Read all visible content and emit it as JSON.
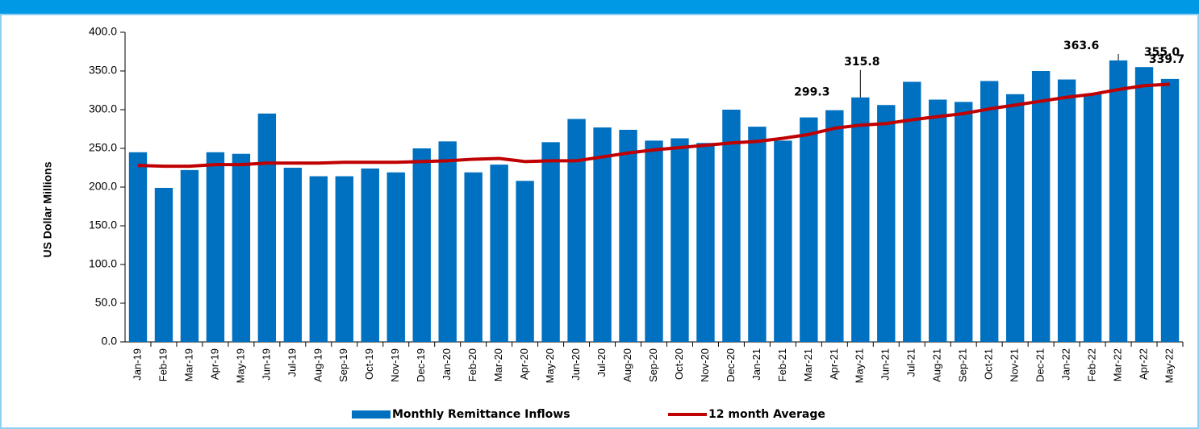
{
  "chart_data": {
    "type": "bar",
    "y_label": "US Dollar Millions",
    "categories": [
      "Jan-19",
      "Feb-19",
      "Mar-19",
      "Apr-19",
      "May-19",
      "Jun-19",
      "Jul-19",
      "Aug-19",
      "Sep-19",
      "Oct-19",
      "Nov-19",
      "Dec-19",
      "Jan-20",
      "Feb-20",
      "Mar-20",
      "Apr-20",
      "May-20",
      "Jun-20",
      "Jul-20",
      "Aug-20",
      "Sep-20",
      "Oct-20",
      "Nov-20",
      "Dec-20",
      "Jan-21",
      "Feb-21",
      "Mar-21",
      "Apr-21",
      "May-21",
      "Jun-21",
      "Jul-21",
      "Aug-21",
      "Sep-21",
      "Oct-21",
      "Nov-21",
      "Dec-21",
      "Jan-22",
      "Feb-22",
      "Mar-22",
      "Apr-22",
      "May-22"
    ],
    "series": [
      {
        "name": "Monthly Remittance Inflows",
        "type": "bar",
        "color": "#0070c0",
        "values": [
          245,
          199,
          222,
          245,
          243,
          295,
          225,
          214,
          214,
          224,
          219,
          250,
          259,
          219,
          229,
          208,
          258,
          288,
          277,
          274,
          260,
          263,
          257,
          300,
          278,
          260,
          290,
          299.3,
          315.8,
          306,
          336,
          313,
          310,
          337,
          320,
          350,
          339,
          320,
          363.6,
          355.0,
          339.7
        ],
        "value_labels": [
          null,
          null,
          null,
          null,
          null,
          null,
          null,
          null,
          null,
          null,
          null,
          null,
          null,
          null,
          null,
          null,
          null,
          null,
          null,
          null,
          null,
          null,
          null,
          null,
          null,
          null,
          null,
          "299.3",
          "315.8",
          null,
          null,
          null,
          null,
          null,
          null,
          null,
          null,
          null,
          "363.6",
          "355.0",
          "339.7"
        ]
      },
      {
        "name": "12 month Average",
        "type": "line",
        "color": "#c00000",
        "values": [
          228,
          227,
          227,
          229,
          229,
          231,
          231,
          231,
          232,
          232,
          232,
          233,
          234,
          236,
          237,
          233,
          234,
          234,
          239,
          244,
          248,
          251,
          254,
          257,
          259,
          263,
          268,
          276,
          280,
          282,
          287,
          291,
          295,
          301,
          306,
          311,
          316,
          320,
          326,
          331,
          333
        ]
      }
    ],
    "ylim": [
      0,
      400
    ],
    "yticks": [
      {
        "value": 0,
        "label": "0.0"
      },
      {
        "value": 50,
        "label": "50.0"
      },
      {
        "value": 100,
        "label": "100.0"
      },
      {
        "value": 150,
        "label": "150.0"
      },
      {
        "value": 200,
        "label": "200.0"
      },
      {
        "value": 250,
        "label": "250.0"
      },
      {
        "value": 300,
        "label": "300.0"
      },
      {
        "value": 350,
        "label": "350.0"
      },
      {
        "value": 400,
        "label": "400.0"
      }
    ],
    "legend": "bottom"
  }
}
